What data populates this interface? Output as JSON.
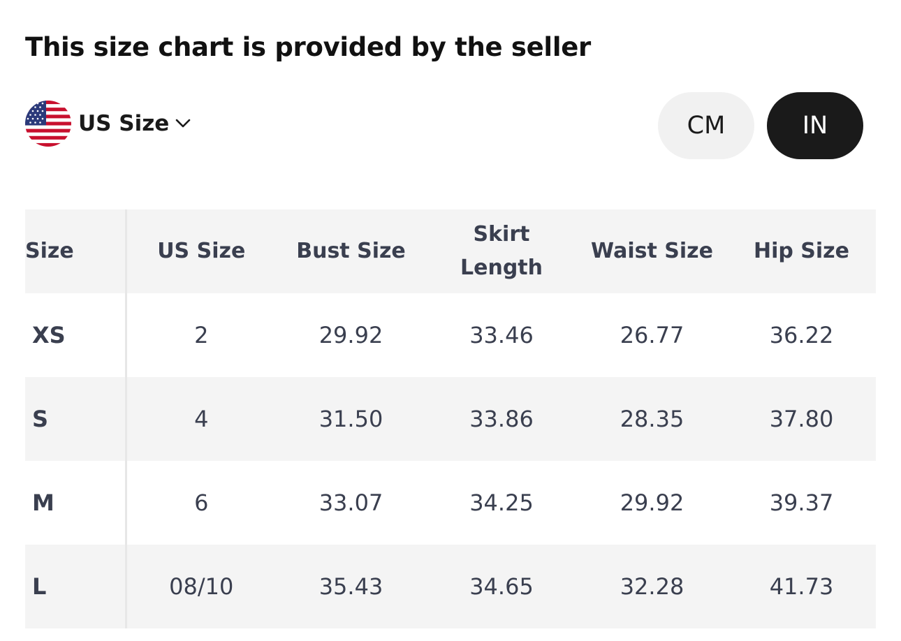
{
  "page": {
    "title": "This size chart is provided by the seller"
  },
  "region": {
    "label": "US Size",
    "flag": "us-flag-icon"
  },
  "units": {
    "options": [
      "CM",
      "IN"
    ],
    "selected": "IN"
  },
  "table": {
    "headers": [
      "Size",
      "US Size",
      "Bust Size",
      "Skirt Length",
      "Waist Size",
      "Hip Size"
    ],
    "rows": [
      [
        "XS",
        "2",
        "29.92",
        "33.46",
        "26.77",
        "36.22"
      ],
      [
        "S",
        "4",
        "31.50",
        "33.86",
        "28.35",
        "37.80"
      ],
      [
        "M",
        "6",
        "33.07",
        "34.25",
        "29.92",
        "39.37"
      ],
      [
        "L",
        "08/10",
        "35.43",
        "34.65",
        "32.28",
        "41.73"
      ]
    ]
  },
  "colors": {
    "active_toggle": "#1a1a1a",
    "inactive_toggle": "#f1f1f1",
    "row_shade": "#f4f4f4",
    "table_text": "#3a3f4f"
  }
}
